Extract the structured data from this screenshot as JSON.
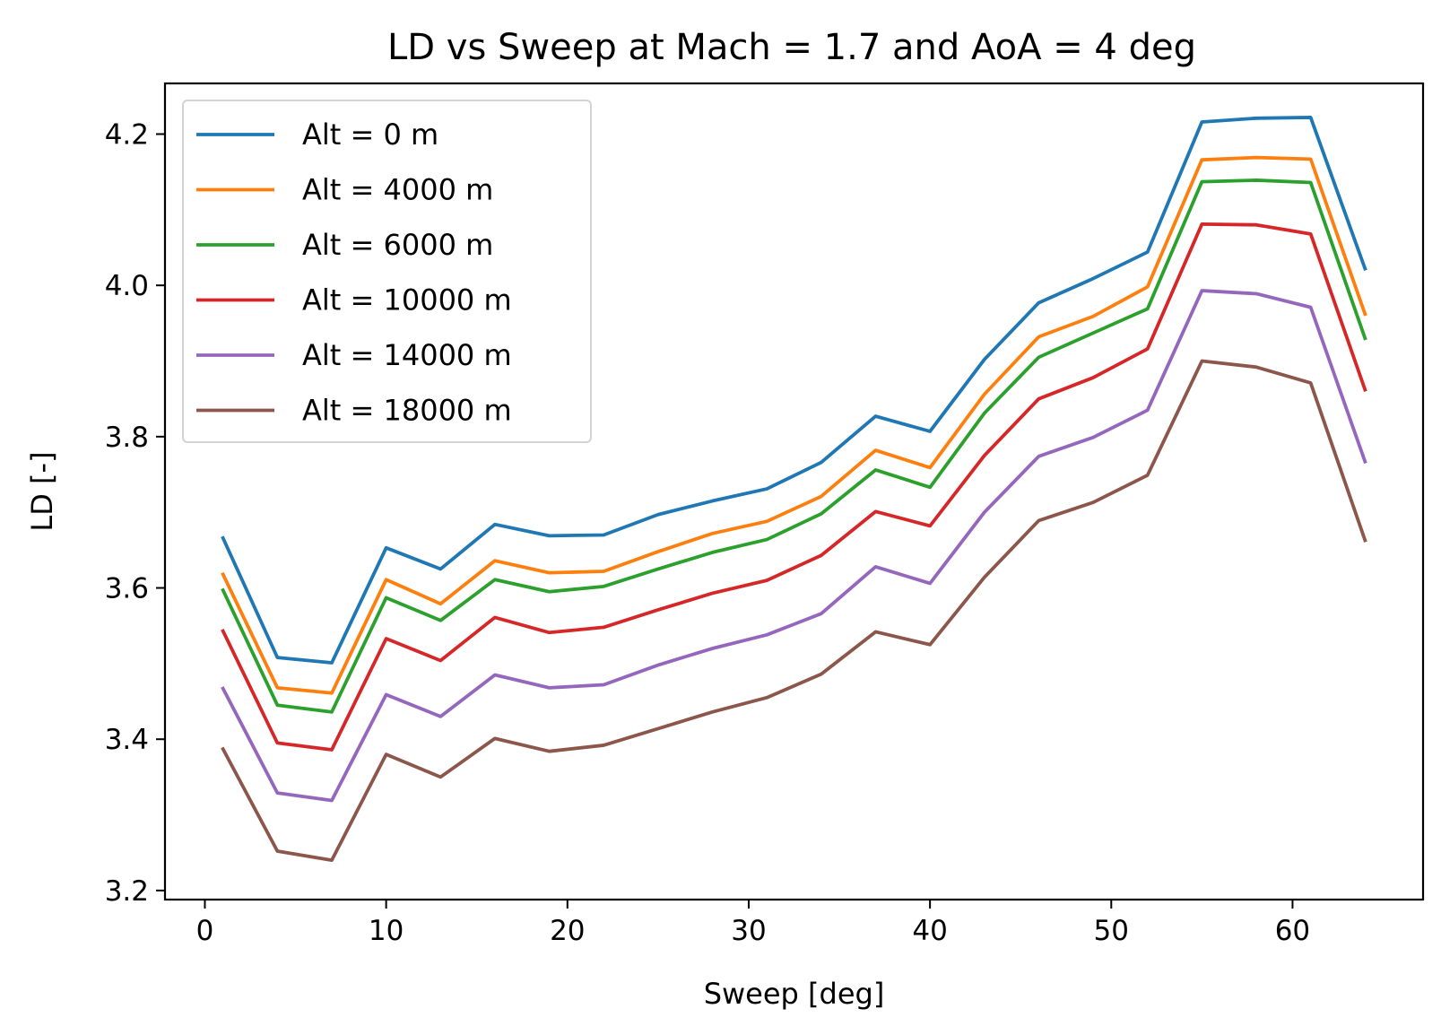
{
  "chart_data": {
    "type": "line",
    "title": "LD vs Sweep at Mach = 1.7 and AoA = 4 deg",
    "xlabel": "Sweep [deg]",
    "ylabel": "LD [-]",
    "xlim": [
      -2.2,
      67.2
    ],
    "ylim": [
      3.188,
      4.267
    ],
    "xticks": [
      0,
      10,
      20,
      30,
      40,
      50,
      60
    ],
    "xtick_labels": [
      "0",
      "10",
      "20",
      "30",
      "40",
      "50",
      "60"
    ],
    "yticks": [
      3.2,
      3.4,
      3.6,
      3.8,
      4.0,
      4.2
    ],
    "ytick_labels": [
      "3.2",
      "3.4",
      "3.6",
      "3.8",
      "4.0",
      "4.2"
    ],
    "grid": false,
    "legend_position": "top-left",
    "x": [
      1,
      4,
      7,
      10,
      13,
      16,
      19,
      22,
      25,
      28,
      31,
      34,
      37,
      40,
      43,
      46,
      49,
      52,
      55,
      58,
      61,
      64
    ],
    "series": [
      {
        "name": "Alt = 0 m",
        "color": "#1f77b4",
        "values": [
          3.666,
          3.508,
          3.501,
          3.653,
          3.625,
          3.684,
          3.669,
          3.67,
          3.697,
          3.715,
          3.731,
          3.766,
          3.827,
          3.807,
          3.902,
          3.977,
          4.009,
          4.044,
          4.216,
          4.221,
          4.222,
          4.022
        ]
      },
      {
        "name": "Alt = 4000 m",
        "color": "#ff7f0e",
        "values": [
          3.618,
          3.468,
          3.461,
          3.611,
          3.579,
          3.636,
          3.62,
          3.622,
          3.648,
          3.672,
          3.688,
          3.721,
          3.782,
          3.759,
          3.856,
          3.932,
          3.959,
          3.998,
          4.166,
          4.169,
          4.167,
          3.962
        ]
      },
      {
        "name": "Alt = 6000 m",
        "color": "#2ca02c",
        "values": [
          3.597,
          3.445,
          3.436,
          3.587,
          3.557,
          3.611,
          3.595,
          3.602,
          3.625,
          3.647,
          3.664,
          3.698,
          3.756,
          3.733,
          3.831,
          3.905,
          3.937,
          3.969,
          4.137,
          4.139,
          4.136,
          3.93
        ]
      },
      {
        "name": "Alt = 10000 m",
        "color": "#d62728",
        "values": [
          3.543,
          3.395,
          3.386,
          3.533,
          3.504,
          3.561,
          3.541,
          3.548,
          3.571,
          3.593,
          3.61,
          3.643,
          3.701,
          3.682,
          3.775,
          3.85,
          3.878,
          3.916,
          4.081,
          4.08,
          4.068,
          3.862
        ]
      },
      {
        "name": "Alt = 14000 m",
        "color": "#9467bd",
        "values": [
          3.467,
          3.329,
          3.319,
          3.459,
          3.43,
          3.485,
          3.468,
          3.472,
          3.498,
          3.52,
          3.538,
          3.566,
          3.628,
          3.606,
          3.7,
          3.774,
          3.799,
          3.835,
          3.993,
          3.989,
          3.971,
          3.767
        ]
      },
      {
        "name": "Alt = 18000 m",
        "color": "#8c564b",
        "values": [
          3.387,
          3.252,
          3.24,
          3.38,
          3.35,
          3.401,
          3.384,
          3.392,
          3.414,
          3.436,
          3.455,
          3.486,
          3.542,
          3.525,
          3.614,
          3.689,
          3.713,
          3.749,
          3.9,
          3.892,
          3.871,
          3.663
        ]
      }
    ]
  }
}
